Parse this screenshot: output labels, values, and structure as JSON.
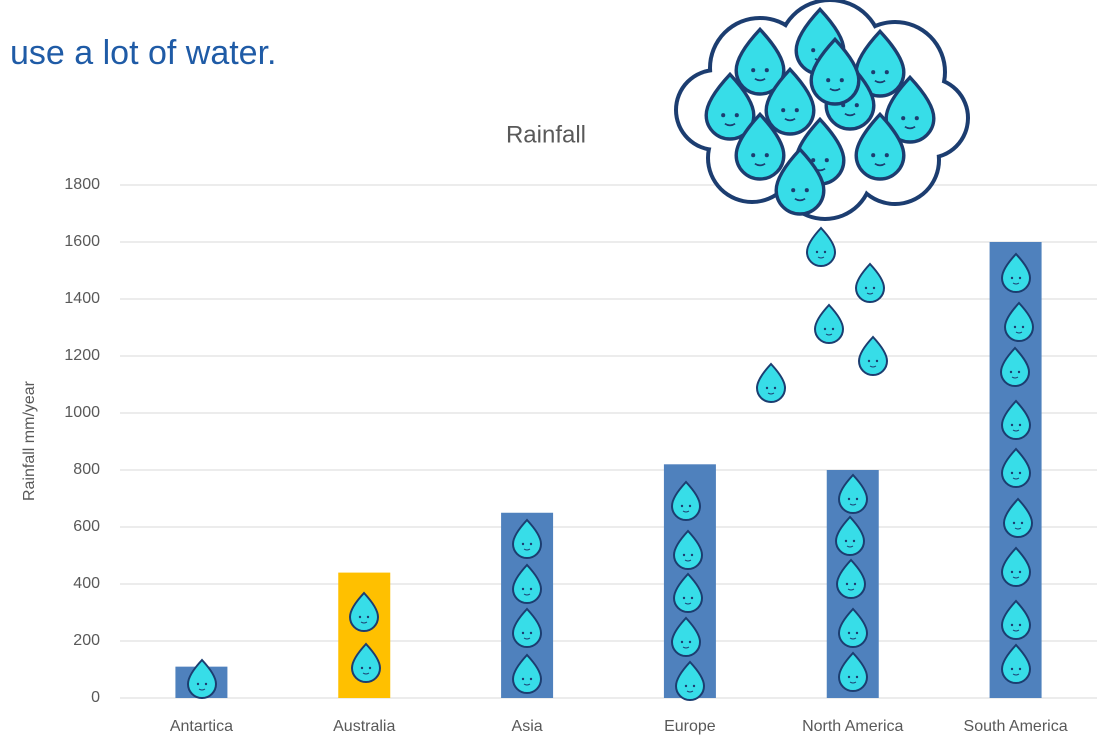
{
  "heading": "use a lot of water.",
  "chart_data": {
    "type": "bar",
    "title": "Rainfall",
    "y_label": "Rainfall mm/year",
    "categories": [
      "Antartica",
      "Australia",
      "Asia",
      "Europe",
      "North America",
      "South America"
    ],
    "values": [
      110,
      440,
      650,
      820,
      800,
      1600
    ],
    "colors": [
      "#4f81bd",
      "#ffc000",
      "#4f81bd",
      "#4f81bd",
      "#4f81bd",
      "#4f81bd"
    ],
    "ylim": [
      0,
      1800
    ],
    "yticks": [
      0,
      200,
      400,
      600,
      800,
      1000,
      1200,
      1400,
      1600,
      1800
    ],
    "grid": true
  }
}
